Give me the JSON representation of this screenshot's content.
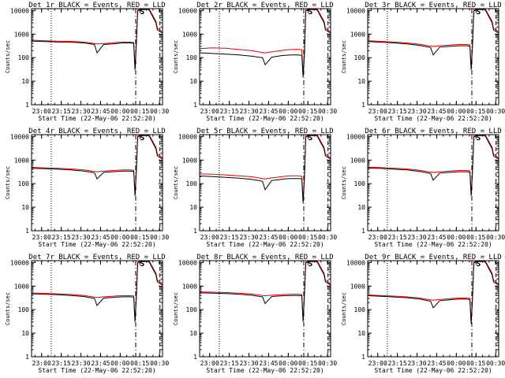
{
  "page": {
    "background": "#ffffff"
  },
  "colors": {
    "events": "#000000",
    "lld": "#e00000",
    "axes": "#000000"
  },
  "common": {
    "xlabel": "Start Time (22-May-06 22:52:20)",
    "ylabel": "Counts/sec",
    "xticks": [
      "23:00",
      "23:15",
      "23:30",
      "23:45",
      "00:00",
      "00:15",
      "00:30"
    ],
    "yticks": [
      "1",
      "10",
      "100",
      "1000",
      "10000"
    ],
    "xlim_min_after_start": [
      0,
      100
    ],
    "ylim": [
      1,
      12000
    ],
    "scale": "log",
    "marker_label": "S"
  },
  "chart_data": [
    {
      "type": "line",
      "title": "Det 1r BLACK = Events, RED = LLD",
      "series": [
        {
          "name": "Events",
          "x": [
            0,
            10,
            20,
            30,
            40,
            45,
            48,
            50,
            55,
            62,
            65,
            70,
            75,
            78,
            79,
            80,
            81,
            83,
            85,
            89,
            90,
            95,
            96,
            100
          ],
          "y": [
            500,
            480,
            460,
            450,
            420,
            380,
            360,
            160,
            360,
            380,
            400,
            420,
            420,
            400,
            30,
            400,
            10000,
            10500,
            11000,
            11000,
            10000,
            3000,
            1500,
            1100
          ]
        },
        {
          "name": "LLD",
          "x": [
            0,
            10,
            20,
            30,
            40,
            45,
            48,
            50,
            55,
            62,
            65,
            70,
            75,
            78,
            79,
            80,
            81,
            83,
            85,
            89,
            90,
            95,
            96,
            100
          ],
          "y": [
            550,
            520,
            500,
            490,
            460,
            420,
            400,
            380,
            400,
            420,
            440,
            460,
            460,
            440,
            35,
            440,
            10500,
            11000,
            11500,
            11500,
            11000,
            3500,
            1800,
            1200
          ]
        }
      ]
    },
    {
      "type": "line",
      "title": "Det 2r BLACK = Events, RED = LLD",
      "series": [
        {
          "name": "Events",
          "x": [
            0,
            10,
            20,
            30,
            40,
            45,
            48,
            50,
            55,
            62,
            65,
            70,
            75,
            78,
            79,
            80,
            81,
            83,
            85,
            89,
            90,
            95,
            96,
            100
          ],
          "y": [
            160,
            150,
            140,
            130,
            115,
            105,
            100,
            50,
            105,
            120,
            125,
            130,
            130,
            125,
            15,
            125,
            10000,
            10500,
            11000,
            11000,
            10000,
            3000,
            1500,
            1100
          ]
        },
        {
          "name": "LLD",
          "x": [
            0,
            10,
            20,
            30,
            40,
            45,
            48,
            50,
            55,
            62,
            65,
            70,
            75,
            78,
            79,
            80,
            81,
            83,
            85,
            89,
            90,
            95,
            96,
            100
          ],
          "y": [
            240,
            260,
            250,
            220,
            200,
            175,
            165,
            160,
            175,
            200,
            210,
            220,
            225,
            215,
            20,
            215,
            10500,
            11000,
            11500,
            11500,
            11000,
            3500,
            1800,
            1200
          ]
        }
      ]
    },
    {
      "type": "line",
      "title": "Det 3r BLACK = Events, RED = LLD",
      "series": [
        {
          "name": "Events",
          "x": [
            0,
            10,
            20,
            30,
            40,
            45,
            48,
            50,
            55,
            62,
            65,
            70,
            75,
            78,
            79,
            80,
            81,
            83,
            85,
            89,
            90,
            95,
            96,
            100
          ],
          "y": [
            480,
            450,
            420,
            380,
            330,
            290,
            270,
            130,
            280,
            300,
            310,
            320,
            320,
            310,
            30,
            310,
            10000,
            10500,
            11000,
            11000,
            10000,
            3000,
            1500,
            1100
          ]
        },
        {
          "name": "LLD",
          "x": [
            0,
            10,
            20,
            30,
            40,
            45,
            48,
            50,
            55,
            62,
            65,
            70,
            75,
            78,
            79,
            80,
            81,
            83,
            85,
            89,
            90,
            95,
            96,
            100
          ],
          "y": [
            520,
            490,
            460,
            420,
            370,
            330,
            310,
            300,
            320,
            340,
            350,
            360,
            360,
            350,
            35,
            350,
            10500,
            11000,
            11500,
            11500,
            11000,
            3500,
            1800,
            1200
          ]
        }
      ]
    },
    {
      "type": "line",
      "title": "Det 4r BLACK = Events, RED = LLD",
      "series": [
        {
          "name": "Events",
          "x": [
            0,
            10,
            20,
            30,
            40,
            45,
            48,
            50,
            55,
            62,
            65,
            70,
            75,
            78,
            79,
            80,
            81,
            83,
            85,
            89,
            90,
            95,
            96,
            100
          ],
          "y": [
            450,
            430,
            410,
            380,
            340,
            310,
            290,
            160,
            300,
            320,
            330,
            340,
            340,
            330,
            30,
            330,
            10000,
            10500,
            11000,
            11000,
            10000,
            3000,
            1500,
            1100
          ]
        },
        {
          "name": "LLD",
          "x": [
            0,
            10,
            20,
            30,
            40,
            45,
            48,
            50,
            55,
            62,
            65,
            70,
            75,
            78,
            79,
            80,
            81,
            83,
            85,
            89,
            90,
            95,
            96,
            100
          ],
          "y": [
            490,
            470,
            450,
            420,
            380,
            350,
            330,
            320,
            340,
            360,
            370,
            380,
            380,
            370,
            35,
            370,
            10500,
            11000,
            11500,
            11500,
            11000,
            3500,
            1800,
            1200
          ]
        }
      ]
    },
    {
      "type": "line",
      "title": "Det 5r BLACK = Events, RED = LLD",
      "series": [
        {
          "name": "Events",
          "x": [
            0,
            10,
            20,
            30,
            40,
            45,
            48,
            50,
            55,
            62,
            65,
            70,
            75,
            78,
            79,
            80,
            81,
            83,
            85,
            89,
            90,
            95,
            96,
            100
          ],
          "y": [
            210,
            200,
            185,
            170,
            150,
            135,
            125,
            55,
            135,
            150,
            160,
            165,
            165,
            160,
            15,
            160,
            10000,
            10500,
            11000,
            11000,
            10000,
            3000,
            1500,
            1100
          ]
        },
        {
          "name": "LLD",
          "x": [
            0,
            10,
            20,
            30,
            40,
            45,
            48,
            50,
            55,
            62,
            65,
            70,
            75,
            78,
            79,
            80,
            81,
            83,
            85,
            89,
            90,
            95,
            96,
            100
          ],
          "y": [
            260,
            250,
            235,
            215,
            195,
            175,
            165,
            160,
            175,
            195,
            205,
            215,
            215,
            205,
            20,
            205,
            10500,
            11000,
            11500,
            11500,
            11000,
            3500,
            1800,
            1200
          ]
        }
      ]
    },
    {
      "type": "line",
      "title": "Det 6r BLACK = Events, RED = LLD",
      "series": [
        {
          "name": "Events",
          "x": [
            0,
            10,
            20,
            30,
            40,
            45,
            48,
            50,
            55,
            62,
            65,
            70,
            75,
            78,
            79,
            80,
            81,
            83,
            85,
            89,
            90,
            95,
            96,
            100
          ],
          "y": [
            460,
            440,
            410,
            380,
            330,
            290,
            270,
            140,
            280,
            300,
            310,
            320,
            320,
            310,
            30,
            310,
            10000,
            10500,
            11000,
            11000,
            10000,
            3000,
            1500,
            1100
          ]
        },
        {
          "name": "LLD",
          "x": [
            0,
            10,
            20,
            30,
            40,
            45,
            48,
            50,
            55,
            62,
            65,
            70,
            75,
            78,
            79,
            80,
            81,
            83,
            85,
            89,
            90,
            95,
            96,
            100
          ],
          "y": [
            500,
            480,
            450,
            420,
            370,
            330,
            310,
            300,
            320,
            340,
            350,
            360,
            360,
            350,
            35,
            350,
            10500,
            11000,
            11500,
            11500,
            11000,
            3500,
            1800,
            1200
          ]
        }
      ]
    },
    {
      "type": "line",
      "title": "Det 7r BLACK = Events, RED = LLD",
      "series": [
        {
          "name": "Events",
          "x": [
            0,
            10,
            20,
            30,
            40,
            45,
            48,
            50,
            55,
            62,
            65,
            70,
            75,
            78,
            79,
            80,
            81,
            83,
            85,
            89,
            90,
            95,
            96,
            100
          ],
          "y": [
            470,
            450,
            430,
            400,
            360,
            320,
            300,
            150,
            310,
            330,
            340,
            350,
            350,
            340,
            30,
            340,
            10000,
            10500,
            11000,
            11000,
            10000,
            3000,
            1500,
            1100
          ]
        },
        {
          "name": "LLD",
          "x": [
            0,
            10,
            20,
            30,
            40,
            45,
            48,
            50,
            55,
            62,
            65,
            70,
            75,
            78,
            79,
            80,
            81,
            83,
            85,
            89,
            90,
            95,
            96,
            100
          ],
          "y": [
            510,
            490,
            470,
            440,
            400,
            360,
            340,
            330,
            350,
            370,
            380,
            390,
            390,
            380,
            35,
            380,
            10500,
            11000,
            11500,
            11500,
            11000,
            3500,
            1800,
            1200
          ]
        }
      ]
    },
    {
      "type": "line",
      "title": "Det 8r BLACK = Events, RED = LLD",
      "series": [
        {
          "name": "Events",
          "x": [
            0,
            10,
            20,
            30,
            40,
            45,
            48,
            50,
            55,
            62,
            65,
            70,
            75,
            78,
            79,
            80,
            81,
            83,
            85,
            89,
            90,
            95,
            96,
            100
          ],
          "y": [
            520,
            500,
            480,
            450,
            410,
            370,
            350,
            180,
            360,
            380,
            390,
            400,
            400,
            390,
            30,
            390,
            10000,
            10500,
            11000,
            11000,
            10000,
            3000,
            1500,
            1100
          ]
        },
        {
          "name": "LLD",
          "x": [
            0,
            10,
            20,
            30,
            40,
            45,
            48,
            50,
            55,
            62,
            65,
            70,
            75,
            78,
            79,
            80,
            81,
            83,
            85,
            89,
            90,
            95,
            96,
            100
          ],
          "y": [
            570,
            550,
            530,
            500,
            460,
            420,
            400,
            390,
            410,
            430,
            440,
            450,
            450,
            440,
            35,
            440,
            10500,
            11000,
            11500,
            11500,
            11000,
            3500,
            1800,
            1200
          ]
        }
      ]
    },
    {
      "type": "line",
      "title": "Det 9r BLACK = Events, RED = LLD",
      "series": [
        {
          "name": "Events",
          "x": [
            0,
            10,
            20,
            30,
            40,
            45,
            48,
            50,
            55,
            62,
            65,
            70,
            75,
            78,
            79,
            80,
            81,
            83,
            85,
            89,
            90,
            95,
            96,
            100
          ],
          "y": [
            390,
            370,
            345,
            320,
            280,
            245,
            230,
            120,
            240,
            260,
            270,
            280,
            280,
            270,
            25,
            270,
            10000,
            10500,
            11000,
            11000,
            10000,
            3000,
            1500,
            1100
          ]
        },
        {
          "name": "LLD",
          "x": [
            0,
            10,
            20,
            30,
            40,
            45,
            48,
            50,
            55,
            62,
            65,
            70,
            75,
            78,
            79,
            80,
            81,
            83,
            85,
            89,
            90,
            95,
            96,
            100
          ],
          "y": [
            420,
            400,
            375,
            350,
            310,
            275,
            260,
            250,
            270,
            290,
            300,
            310,
            310,
            300,
            30,
            300,
            10500,
            11000,
            11500,
            11500,
            11000,
            3500,
            1800,
            1200
          ]
        }
      ]
    }
  ]
}
